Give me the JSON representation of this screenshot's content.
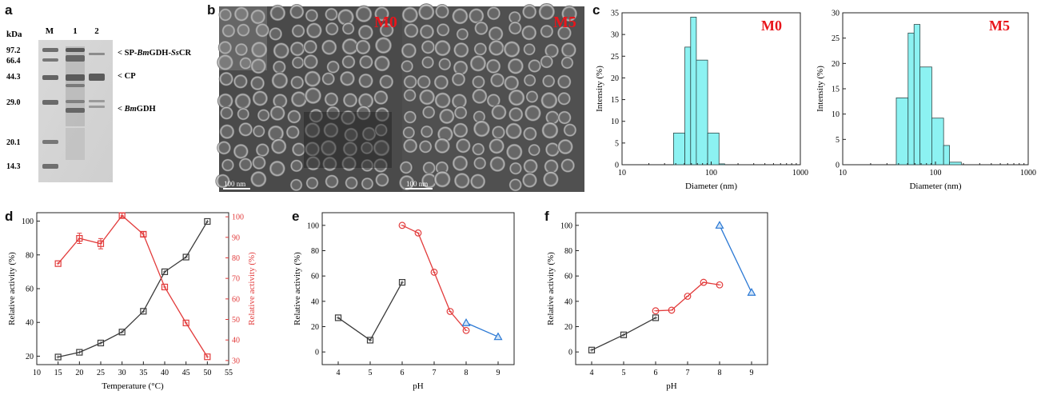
{
  "panels": {
    "a": {
      "letter": "a",
      "unit_label": "kDa",
      "lane_labels": [
        "M",
        "1",
        "2"
      ],
      "marker_kda": [
        "97.2",
        "66.4",
        "44.3",
        "29.0",
        "20.1",
        "14.3"
      ],
      "band_annotations": [
        {
          "prefix": "< SP-",
          "italic": "Bm",
          "mid": "GDH-",
          "italic2": "Ss",
          "suffix": "CR"
        },
        {
          "prefix": "< CP",
          "italic": "",
          "mid": "",
          "italic2": "",
          "suffix": ""
        },
        {
          "prefix": "< ",
          "italic": "Bm",
          "mid": "GDH",
          "italic2": "",
          "suffix": ""
        }
      ]
    },
    "b": {
      "letter": "b",
      "left_label": "M0",
      "right_label": "M5",
      "scale_bar_text": "100 nm",
      "label_color": "#e8151b"
    },
    "c": {
      "letter": "c"
    },
    "d": {
      "letter": "d"
    },
    "e": {
      "letter": "e"
    },
    "f": {
      "letter": "f"
    }
  },
  "colors": {
    "black_series": "#3a3a3a",
    "red_series": "#e23b3b",
    "blue_series": "#2a78d4",
    "bar_fill": "#8cf2f2",
    "bar_stroke": "#2e4a4a",
    "label_red": "#e8151b"
  },
  "chart_data": [
    {
      "id": "c1",
      "type": "bar",
      "title": "M0",
      "xlabel": "Diameter (nm)",
      "ylabel": "Intensity (%)",
      "xscale": "log",
      "xlim": [
        10,
        1000
      ],
      "ylim": [
        0,
        35
      ],
      "xticks": [
        "10",
        "100",
        "1000"
      ],
      "yticks": [
        "0",
        "5",
        "10",
        "15",
        "20",
        "25",
        "30",
        "35"
      ],
      "bins": [
        {
          "x0": 37.8,
          "x1": 50.7,
          "value": 7.3
        },
        {
          "x0": 50.7,
          "x1": 58.8,
          "value": 27.1
        },
        {
          "x0": 58.8,
          "x1": 68.1,
          "value": 34.0
        },
        {
          "x0": 68.1,
          "x1": 91.3,
          "value": 24.1
        },
        {
          "x0": 91.3,
          "x1": 122.4,
          "value": 7.3
        },
        {
          "x0": 122.4,
          "x1": 141.8,
          "value": 0.2
        }
      ]
    },
    {
      "id": "c2",
      "type": "bar",
      "title": "M5",
      "xlabel": "Diameter (nm)",
      "ylabel": "Intensity (%)",
      "xscale": "log",
      "xlim": [
        10,
        1000
      ],
      "ylim": [
        0,
        30
      ],
      "xticks": [
        "10",
        "100",
        "1000"
      ],
      "yticks": [
        "0",
        "5",
        "10",
        "15",
        "20",
        "25",
        "30"
      ],
      "bins": [
        {
          "x0": 37.8,
          "x1": 50.7,
          "value": 13.2
        },
        {
          "x0": 50.7,
          "x1": 58.8,
          "value": 26.0
        },
        {
          "x0": 58.8,
          "x1": 68.1,
          "value": 27.7
        },
        {
          "x0": 68.1,
          "x1": 91.3,
          "value": 19.3
        },
        {
          "x0": 91.3,
          "x1": 122.4,
          "value": 9.2
        },
        {
          "x0": 122.4,
          "x1": 141.8,
          "value": 3.8
        },
        {
          "x0": 141.8,
          "x1": 190.1,
          "value": 0.5
        }
      ]
    },
    {
      "id": "d",
      "type": "line",
      "xlabel": "Temperature (°C)",
      "ylabel": "Relative activity (%)",
      "ylabel_right": "Relative activity (%)",
      "xlim": [
        10,
        55
      ],
      "ylim": [
        15,
        105
      ],
      "ylim_right": [
        28,
        102
      ],
      "xticks": [
        "10",
        "15",
        "20",
        "25",
        "30",
        "35",
        "40",
        "45",
        "50",
        "55"
      ],
      "yticks": [
        "20",
        "40",
        "60",
        "80",
        "100"
      ],
      "yticks_right": [
        "30",
        "40",
        "50",
        "60",
        "70",
        "80",
        "90",
        "100"
      ],
      "series": [
        {
          "axis": "left",
          "color": "black",
          "marker": "square",
          "x": [
            15,
            20,
            25,
            30,
            35,
            40,
            45,
            50
          ],
          "y": [
            19.5,
            22.3,
            27.8,
            34.3,
            46.6,
            70.0,
            78.7,
            99.8
          ],
          "err": [
            0,
            0,
            0,
            0,
            0,
            0,
            0,
            0
          ]
        },
        {
          "axis": "right",
          "color": "red",
          "marker": "square",
          "x": [
            15,
            20,
            25,
            30,
            35,
            40,
            45,
            50
          ],
          "y": [
            77.2,
            89.5,
            86.9,
            100.6,
            91.5,
            65.8,
            48.3,
            31.8
          ],
          "err": [
            0,
            2.5,
            2.5,
            1.2,
            1.2,
            0,
            0,
            0
          ]
        }
      ]
    },
    {
      "id": "e",
      "type": "line",
      "xlabel": "pH",
      "ylabel": "Relative activity (%)",
      "xlim": [
        3.5,
        9.5
      ],
      "ylim": [
        -10,
        110
      ],
      "xticks": [
        "4",
        "5",
        "6",
        "7",
        "8",
        "9"
      ],
      "yticks": [
        "0",
        "20",
        "40",
        "60",
        "80",
        "100"
      ],
      "series": [
        {
          "color": "black",
          "marker": "square",
          "x": [
            4,
            5,
            6
          ],
          "y": [
            27.0,
            9.3,
            55.0
          ]
        },
        {
          "color": "red",
          "marker": "circle",
          "x": [
            6,
            6.5,
            7,
            7.5,
            8
          ],
          "y": [
            100.0,
            94.0,
            63.0,
            32.0,
            17.0
          ]
        },
        {
          "color": "blue",
          "marker": "triangle",
          "x": [
            8,
            9
          ],
          "y": [
            23.0,
            12.0
          ]
        }
      ]
    },
    {
      "id": "f",
      "type": "line",
      "xlabel": "pH",
      "ylabel": "Relative activity (%)",
      "xlim": [
        3.5,
        9.5
      ],
      "ylim": [
        -10,
        110
      ],
      "xticks": [
        "4",
        "5",
        "6",
        "7",
        "8",
        "9"
      ],
      "yticks": [
        "0",
        "20",
        "40",
        "60",
        "80",
        "100"
      ],
      "series": [
        {
          "color": "black",
          "marker": "square",
          "x": [
            4,
            5,
            6
          ],
          "y": [
            1.5,
            13.5,
            27.0
          ]
        },
        {
          "color": "red",
          "marker": "circle",
          "x": [
            6,
            6.5,
            7,
            7.5,
            8
          ],
          "y": [
            32.5,
            33.0,
            44.0,
            55.0,
            53.0
          ]
        },
        {
          "color": "blue",
          "marker": "triangle",
          "x": [
            8,
            9
          ],
          "y": [
            100.0,
            47.0
          ]
        }
      ]
    }
  ]
}
